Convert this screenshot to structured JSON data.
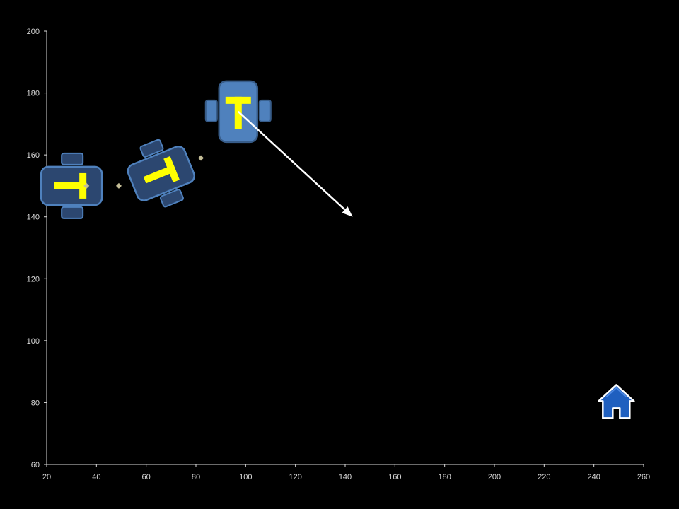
{
  "chart_data": {
    "type": "scatter",
    "title": "",
    "xlabel": "",
    "ylabel": "",
    "xlim": [
      20,
      260
    ],
    "ylim": [
      60,
      200
    ],
    "x_ticks": [
      20,
      40,
      60,
      80,
      100,
      120,
      140,
      160,
      180,
      200,
      220,
      240,
      260
    ],
    "y_ticks": [
      60,
      80,
      100,
      120,
      140,
      160,
      180,
      200
    ],
    "x_tick_labels": [
      "20",
      "40",
      "60",
      "80",
      "100",
      "120",
      "140",
      "160",
      "180",
      "200",
      "220",
      "240",
      "260"
    ],
    "y_tick_labels": [
      "60",
      "80",
      "100",
      "120",
      "140",
      "160",
      "180",
      "200"
    ],
    "grid": false,
    "legend": "none",
    "series": [
      {
        "marker": "diamond",
        "color": "#c4bd97",
        "points": [
          [
            36,
            150
          ],
          [
            49,
            150
          ],
          [
            82,
            159
          ]
        ]
      }
    ],
    "robots": [
      {
        "x": 30,
        "y": 150,
        "heading_deg": 90,
        "state": "past",
        "label": "T"
      },
      {
        "x": 66,
        "y": 154,
        "heading_deg": 68,
        "state": "past",
        "label": "T"
      },
      {
        "x": 97,
        "y": 174,
        "heading_deg": 0,
        "state": "current",
        "label": "T"
      }
    ],
    "arrow": {
      "from": [
        97,
        174
      ],
      "to": [
        143,
        140
      ],
      "color": "#ffffff"
    },
    "home": {
      "x": 249,
      "y": 80,
      "icon": "home-icon",
      "color": "#1f5fbf"
    },
    "colors": {
      "background": "#000000",
      "axis": "#d9d9d9",
      "robot_body_current": "#4f81bd",
      "robot_body_past": "#2c4770",
      "robot_stroke_current": "#385d8a",
      "robot_stroke_past": "#4f81bd",
      "robot_letter": "#ffff00"
    }
  }
}
